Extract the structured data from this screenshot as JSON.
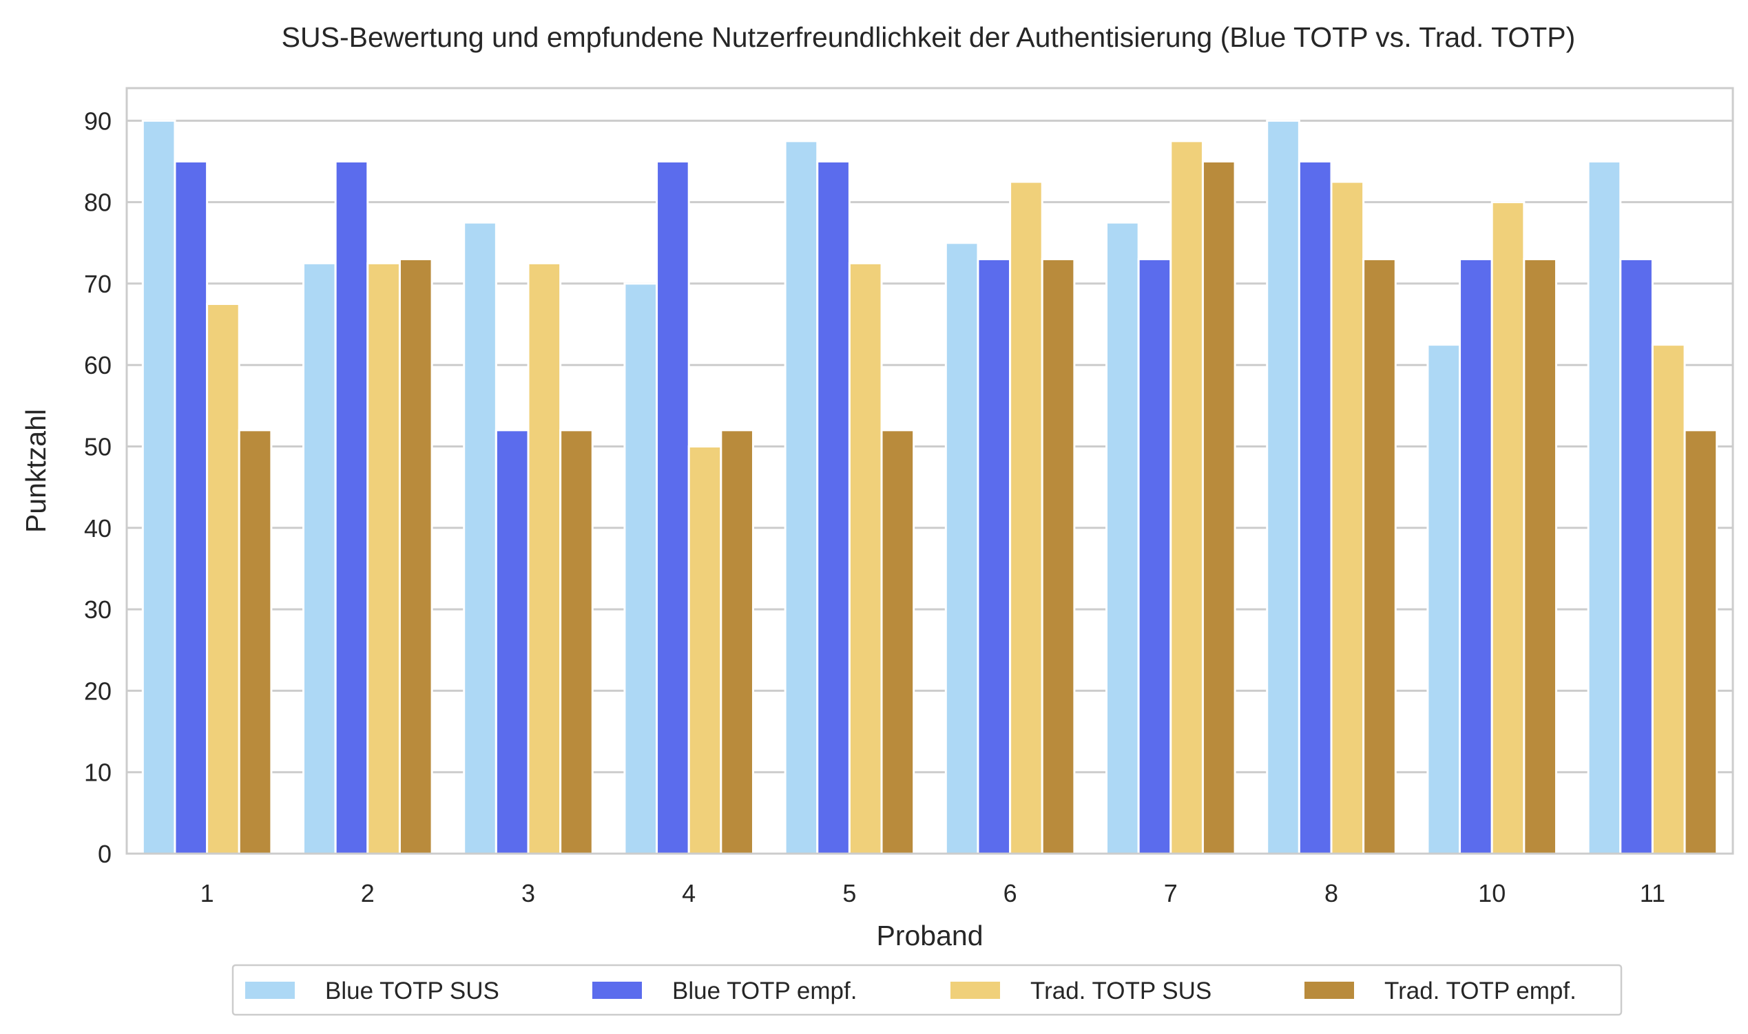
{
  "chart_data": {
    "type": "bar",
    "title": "SUS-Bewertung und empfundene Nutzerfreundlichkeit der Authentisierung (Blue TOTP vs. Trad. TOTP)",
    "xlabel": "Proband",
    "ylabel": "Punktzahl",
    "ylim": [
      0,
      94
    ],
    "yticks": [
      0,
      10,
      20,
      30,
      40,
      50,
      60,
      70,
      80,
      90
    ],
    "grid": "horizontal",
    "legend_position": "bottom-center",
    "categories": [
      "1",
      "2",
      "3",
      "4",
      "5",
      "6",
      "7",
      "8",
      "10",
      "11"
    ],
    "series": [
      {
        "name": "Blue TOTP SUS",
        "color": "#add8f5",
        "values": [
          90,
          72.5,
          77.5,
          70,
          87.5,
          75,
          77.5,
          90,
          62.5,
          85
        ]
      },
      {
        "name": "Blue TOTP empf.",
        "color": "#5b6ced",
        "values": [
          85,
          85,
          52,
          85,
          85,
          73,
          73,
          85,
          73,
          73
        ]
      },
      {
        "name": "Trad. TOTP SUS",
        "color": "#f0d07a",
        "values": [
          67.5,
          72.5,
          72.5,
          50,
          72.5,
          82.5,
          87.5,
          82.5,
          80,
          62.5
        ]
      },
      {
        "name": "Trad. TOTP empf.",
        "color": "#b98b3c",
        "values": [
          52,
          73,
          52,
          52,
          52,
          73,
          85,
          73,
          73,
          52
        ]
      }
    ]
  }
}
